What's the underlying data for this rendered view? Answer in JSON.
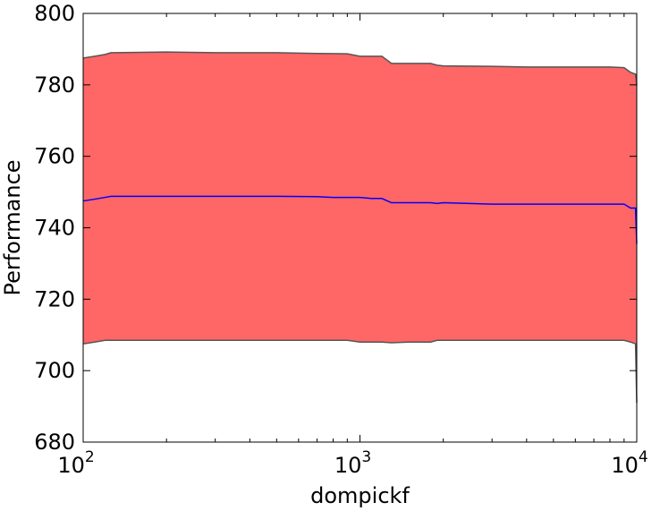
{
  "chart_data": {
    "type": "area",
    "xlabel": "dompickf",
    "ylabel": "Performance",
    "xscale": "log",
    "xlim": [
      100,
      10000
    ],
    "ylim": [
      680,
      800
    ],
    "x_ticks": [
      {
        "value": 100,
        "base": "10",
        "exp": "2"
      },
      {
        "value": 1000,
        "base": "10",
        "exp": "3"
      },
      {
        "value": 10000,
        "base": "10",
        "exp": "4"
      }
    ],
    "y_ticks": [
      680,
      700,
      720,
      740,
      760,
      780,
      800
    ],
    "grid": false,
    "colors": {
      "band_fill": "#ff6666",
      "band_edge": "#555555",
      "mean_line": "#0000ff"
    },
    "series": [
      {
        "role": "band",
        "x": [
          100,
          110,
          120,
          126,
          200,
          300,
          400,
          500,
          700,
          900,
          1000,
          1100,
          1200,
          1300,
          1500,
          1800,
          1900,
          2000,
          3000,
          4000,
          5000,
          6000,
          7000,
          8000,
          9000,
          9500,
          9900,
          10000
        ],
        "upper": [
          787.5,
          788,
          788.5,
          789,
          789.2,
          789,
          789,
          789,
          788.8,
          788.7,
          788,
          788,
          788,
          786,
          786,
          786,
          785.5,
          785.3,
          785.2,
          785,
          785,
          785,
          785,
          785,
          784.8,
          783.5,
          783,
          780
        ],
        "lower": [
          707.5,
          708,
          708.5,
          708.5,
          708.5,
          708.5,
          708.5,
          708.5,
          708.5,
          708.5,
          708,
          708,
          708,
          707.8,
          708,
          708,
          708.5,
          708.5,
          708.5,
          708.5,
          708.5,
          708.5,
          708.5,
          708.5,
          708.5,
          708,
          707.5,
          691
        ]
      },
      {
        "role": "mean",
        "x": [
          100,
          110,
          120,
          126,
          200,
          300,
          400,
          500,
          700,
          800,
          1000,
          1100,
          1200,
          1300,
          1500,
          1800,
          1900,
          2000,
          2500,
          3000,
          4000,
          5000,
          6000,
          7000,
          8000,
          9000,
          9500,
          9900,
          10000
        ],
        "y": [
          747.5,
          748,
          748.5,
          748.8,
          748.8,
          748.8,
          748.8,
          748.8,
          748.7,
          748.5,
          748.5,
          748.2,
          748.2,
          747,
          747,
          747,
          746.8,
          747,
          746.8,
          746.6,
          746.6,
          746.6,
          746.6,
          746.6,
          746.6,
          746.6,
          745.5,
          745.5,
          735.5
        ]
      }
    ]
  }
}
